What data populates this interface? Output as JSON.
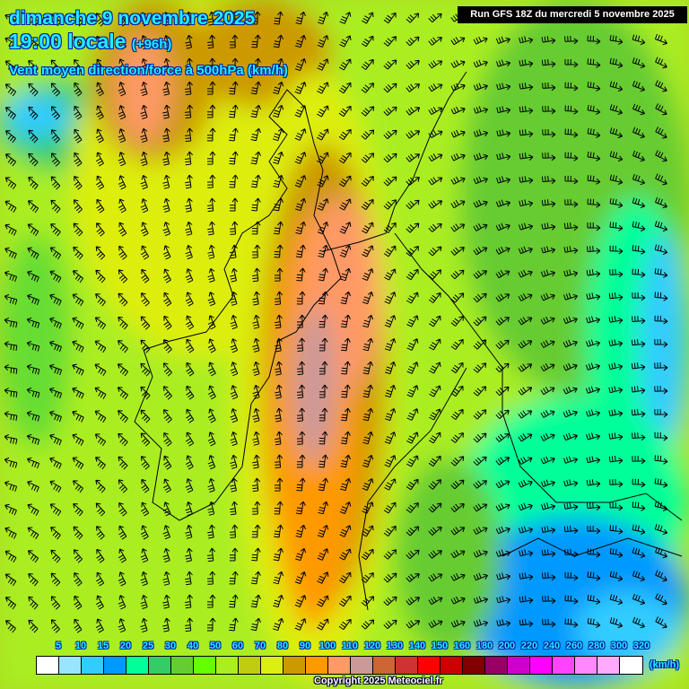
{
  "header": {
    "date": "dimanche 9 novembre 2025",
    "time": "19:00 locale",
    "lead": "(+96h)",
    "parameter": "Vent moyen direction/force à 500hPa (km/h)",
    "run": "Run GFS 18Z du mercredi 5 novembre 2025"
  },
  "legend": {
    "labels": [
      "5",
      "10",
      "15",
      "20",
      "25",
      "30",
      "40",
      "50",
      "60",
      "70",
      "80",
      "90",
      "100",
      "110",
      "120",
      "130",
      "140",
      "150",
      "160",
      "180",
      "200",
      "220",
      "240",
      "260",
      "280",
      "300",
      "320"
    ],
    "colors": [
      "#ffffff",
      "#99e5ff",
      "#33ccff",
      "#0099ff",
      "#00ff99",
      "#33cc66",
      "#66cc33",
      "#66ff00",
      "#aaee22",
      "#c0cc11",
      "#ddee11",
      "#cc9900",
      "#ff9900",
      "#ff9966",
      "#cc9999",
      "#cc6633",
      "#cc3333",
      "#ff0000",
      "#cc0000",
      "#800000",
      "#990066",
      "#cc00cc",
      "#ff00ff",
      "#ff44ff",
      "#ff88ff",
      "#ffaaff",
      "#ffffff"
    ],
    "units": "(km/h)"
  },
  "copyright": "Copyright 2025 Meteociel.fr"
}
